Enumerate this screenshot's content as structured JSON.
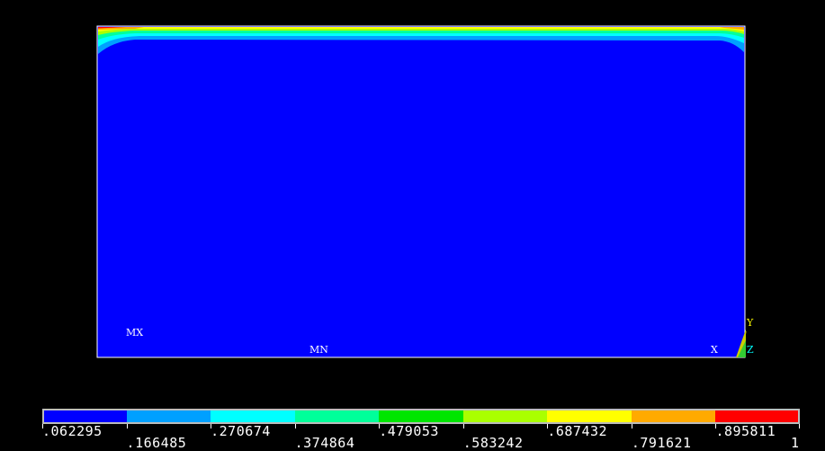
{
  "plot": {
    "background": "#000000",
    "model_fill": "#0000ff",
    "model_border": "#ffffff",
    "markers": {
      "max": "MX",
      "min": "MN"
    },
    "triad": {
      "x": "X",
      "y": "Y",
      "z": "Z",
      "xcolor": "#ffffff",
      "ycolor": "#ffff00",
      "zcolor": "#00ffff"
    }
  },
  "legend": {
    "colors": [
      "#0000ff",
      "#00a0ff",
      "#00ffff",
      "#00ff9a",
      "#00e600",
      "#aaff00",
      "#ffff00",
      "#ffaa00",
      "#ff0000"
    ],
    "upper_values": [
      ".062295",
      ".270674",
      ".479053",
      ".687432",
      ".895811"
    ],
    "lower_values": [
      ".166485",
      ".374864",
      ".583242",
      ".791621",
      "1"
    ]
  }
}
